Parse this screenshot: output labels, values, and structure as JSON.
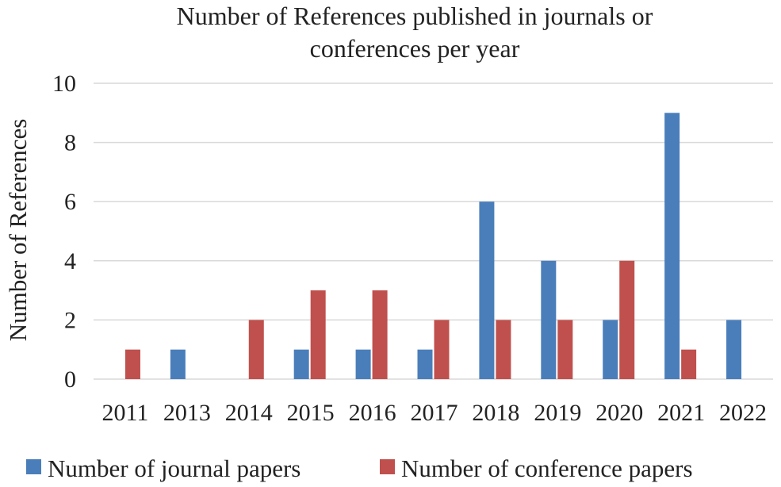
{
  "chart_data": {
    "type": "bar",
    "title_lines": [
      "Number of References published in journals or",
      "conferences per year"
    ],
    "xlabel": "",
    "ylabel": "Number of References",
    "categories": [
      "2011",
      "2013",
      "2014",
      "2015",
      "2016",
      "2017",
      "2018",
      "2019",
      "2020",
      "2021",
      "2022"
    ],
    "series": [
      {
        "name": "Number of journal papers",
        "color": "#4a7ebb",
        "values": [
          0,
          1,
          0,
          1,
          1,
          1,
          6,
          4,
          2,
          9,
          2
        ]
      },
      {
        "name": "Number of conference papers",
        "color": "#c0504d",
        "values": [
          1,
          0,
          2,
          3,
          3,
          2,
          2,
          2,
          4,
          1,
          0
        ]
      }
    ],
    "ylim": [
      0,
      10
    ],
    "yticks": [
      0,
      2,
      4,
      6,
      8,
      10
    ],
    "grid": true,
    "legend_position": "bottom"
  }
}
